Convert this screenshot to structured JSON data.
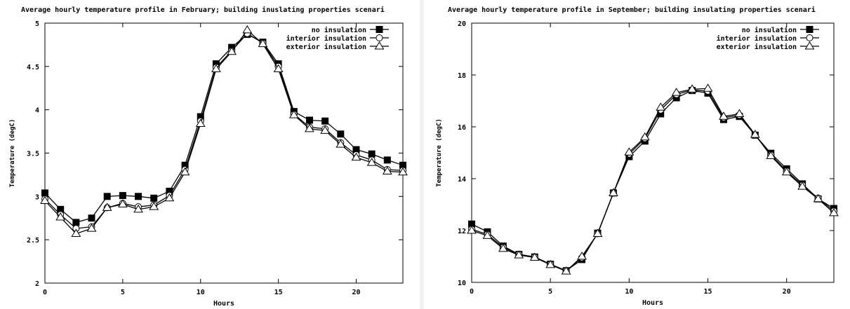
{
  "chart_data": [
    {
      "type": "line",
      "title": "Average hourly temperature profile in February; building inuslating properties scenari",
      "xlabel": "Hours",
      "ylabel": "Temperature (degC)",
      "xlim": [
        0,
        23
      ],
      "ylim": [
        2,
        5
      ],
      "xticks": [
        "0",
        "5",
        "10",
        "15",
        "20"
      ],
      "yticks": [
        "2",
        "2.5",
        "3",
        "3.5",
        "4",
        "4.5",
        "5"
      ],
      "grid": false,
      "legend_position": "top-right",
      "x": [
        0,
        1,
        2,
        3,
        4,
        5,
        6,
        7,
        8,
        9,
        10,
        11,
        12,
        13,
        14,
        15,
        16,
        17,
        18,
        19,
        20,
        21,
        22,
        23
      ],
      "series": [
        {
          "name": "no insulation",
          "marker": "square-filled",
          "values": [
            3.04,
            2.85,
            2.7,
            2.75,
            3.0,
            3.01,
            3.0,
            2.98,
            3.06,
            3.36,
            3.92,
            4.53,
            4.72,
            4.87,
            4.78,
            4.53,
            3.98,
            3.88,
            3.87,
            3.72,
            3.54,
            3.49,
            3.42,
            3.36
          ]
        },
        {
          "name": "interior insulation",
          "marker": "circle-open",
          "values": [
            2.97,
            2.79,
            2.63,
            2.65,
            2.87,
            2.92,
            2.88,
            2.9,
            3.01,
            3.31,
            3.87,
            4.49,
            4.68,
            4.88,
            4.77,
            4.5,
            3.95,
            3.8,
            3.78,
            3.62,
            3.48,
            3.42,
            3.31,
            3.3
          ]
        },
        {
          "name": "exterior insulation",
          "marker": "triangle-open",
          "values": [
            2.95,
            2.76,
            2.57,
            2.63,
            2.87,
            2.91,
            2.85,
            2.88,
            2.98,
            3.28,
            3.84,
            4.47,
            4.67,
            4.92,
            4.76,
            4.47,
            3.94,
            3.78,
            3.76,
            3.6,
            3.45,
            3.39,
            3.29,
            3.28
          ]
        }
      ]
    },
    {
      "type": "line",
      "title": "Average hourly temperature profile in September; building insulating properties scenari",
      "xlabel": "Hours",
      "ylabel": "Temperature (degC)",
      "xlim": [
        0,
        23
      ],
      "ylim": [
        10,
        20
      ],
      "xticks": [
        "0",
        "5",
        "10",
        "15",
        "20"
      ],
      "yticks": [
        "10",
        "12",
        "14",
        "16",
        "18",
        "20"
      ],
      "grid": false,
      "legend_position": "top-right",
      "x": [
        0,
        1,
        2,
        3,
        4,
        5,
        6,
        7,
        8,
        9,
        10,
        11,
        12,
        13,
        14,
        15,
        16,
        17,
        18,
        19,
        20,
        21,
        22,
        23
      ],
      "series": [
        {
          "name": "no insulation",
          "marker": "square-filled",
          "values": [
            12.25,
            11.95,
            11.4,
            11.08,
            10.98,
            10.7,
            10.45,
            10.88,
            11.9,
            13.45,
            14.85,
            15.45,
            16.5,
            17.12,
            17.4,
            17.3,
            16.28,
            16.4,
            15.68,
            14.98,
            14.38,
            13.8,
            13.22,
            12.85
          ]
        },
        {
          "name": "interior insulation",
          "marker": "circle-open",
          "values": [
            12.05,
            11.85,
            11.35,
            11.08,
            10.98,
            10.7,
            10.45,
            10.95,
            11.88,
            13.45,
            14.95,
            15.55,
            16.65,
            17.25,
            17.42,
            17.38,
            16.35,
            16.45,
            15.68,
            14.92,
            14.3,
            13.75,
            13.25,
            12.75
          ]
        },
        {
          "name": "exterior insulation",
          "marker": "triangle-open",
          "values": [
            12.0,
            11.8,
            11.3,
            11.05,
            10.96,
            10.68,
            10.43,
            11.0,
            11.88,
            13.45,
            15.02,
            15.6,
            16.75,
            17.32,
            17.45,
            17.48,
            16.4,
            16.5,
            15.7,
            14.88,
            14.25,
            13.7,
            13.22,
            12.68
          ]
        }
      ]
    }
  ]
}
